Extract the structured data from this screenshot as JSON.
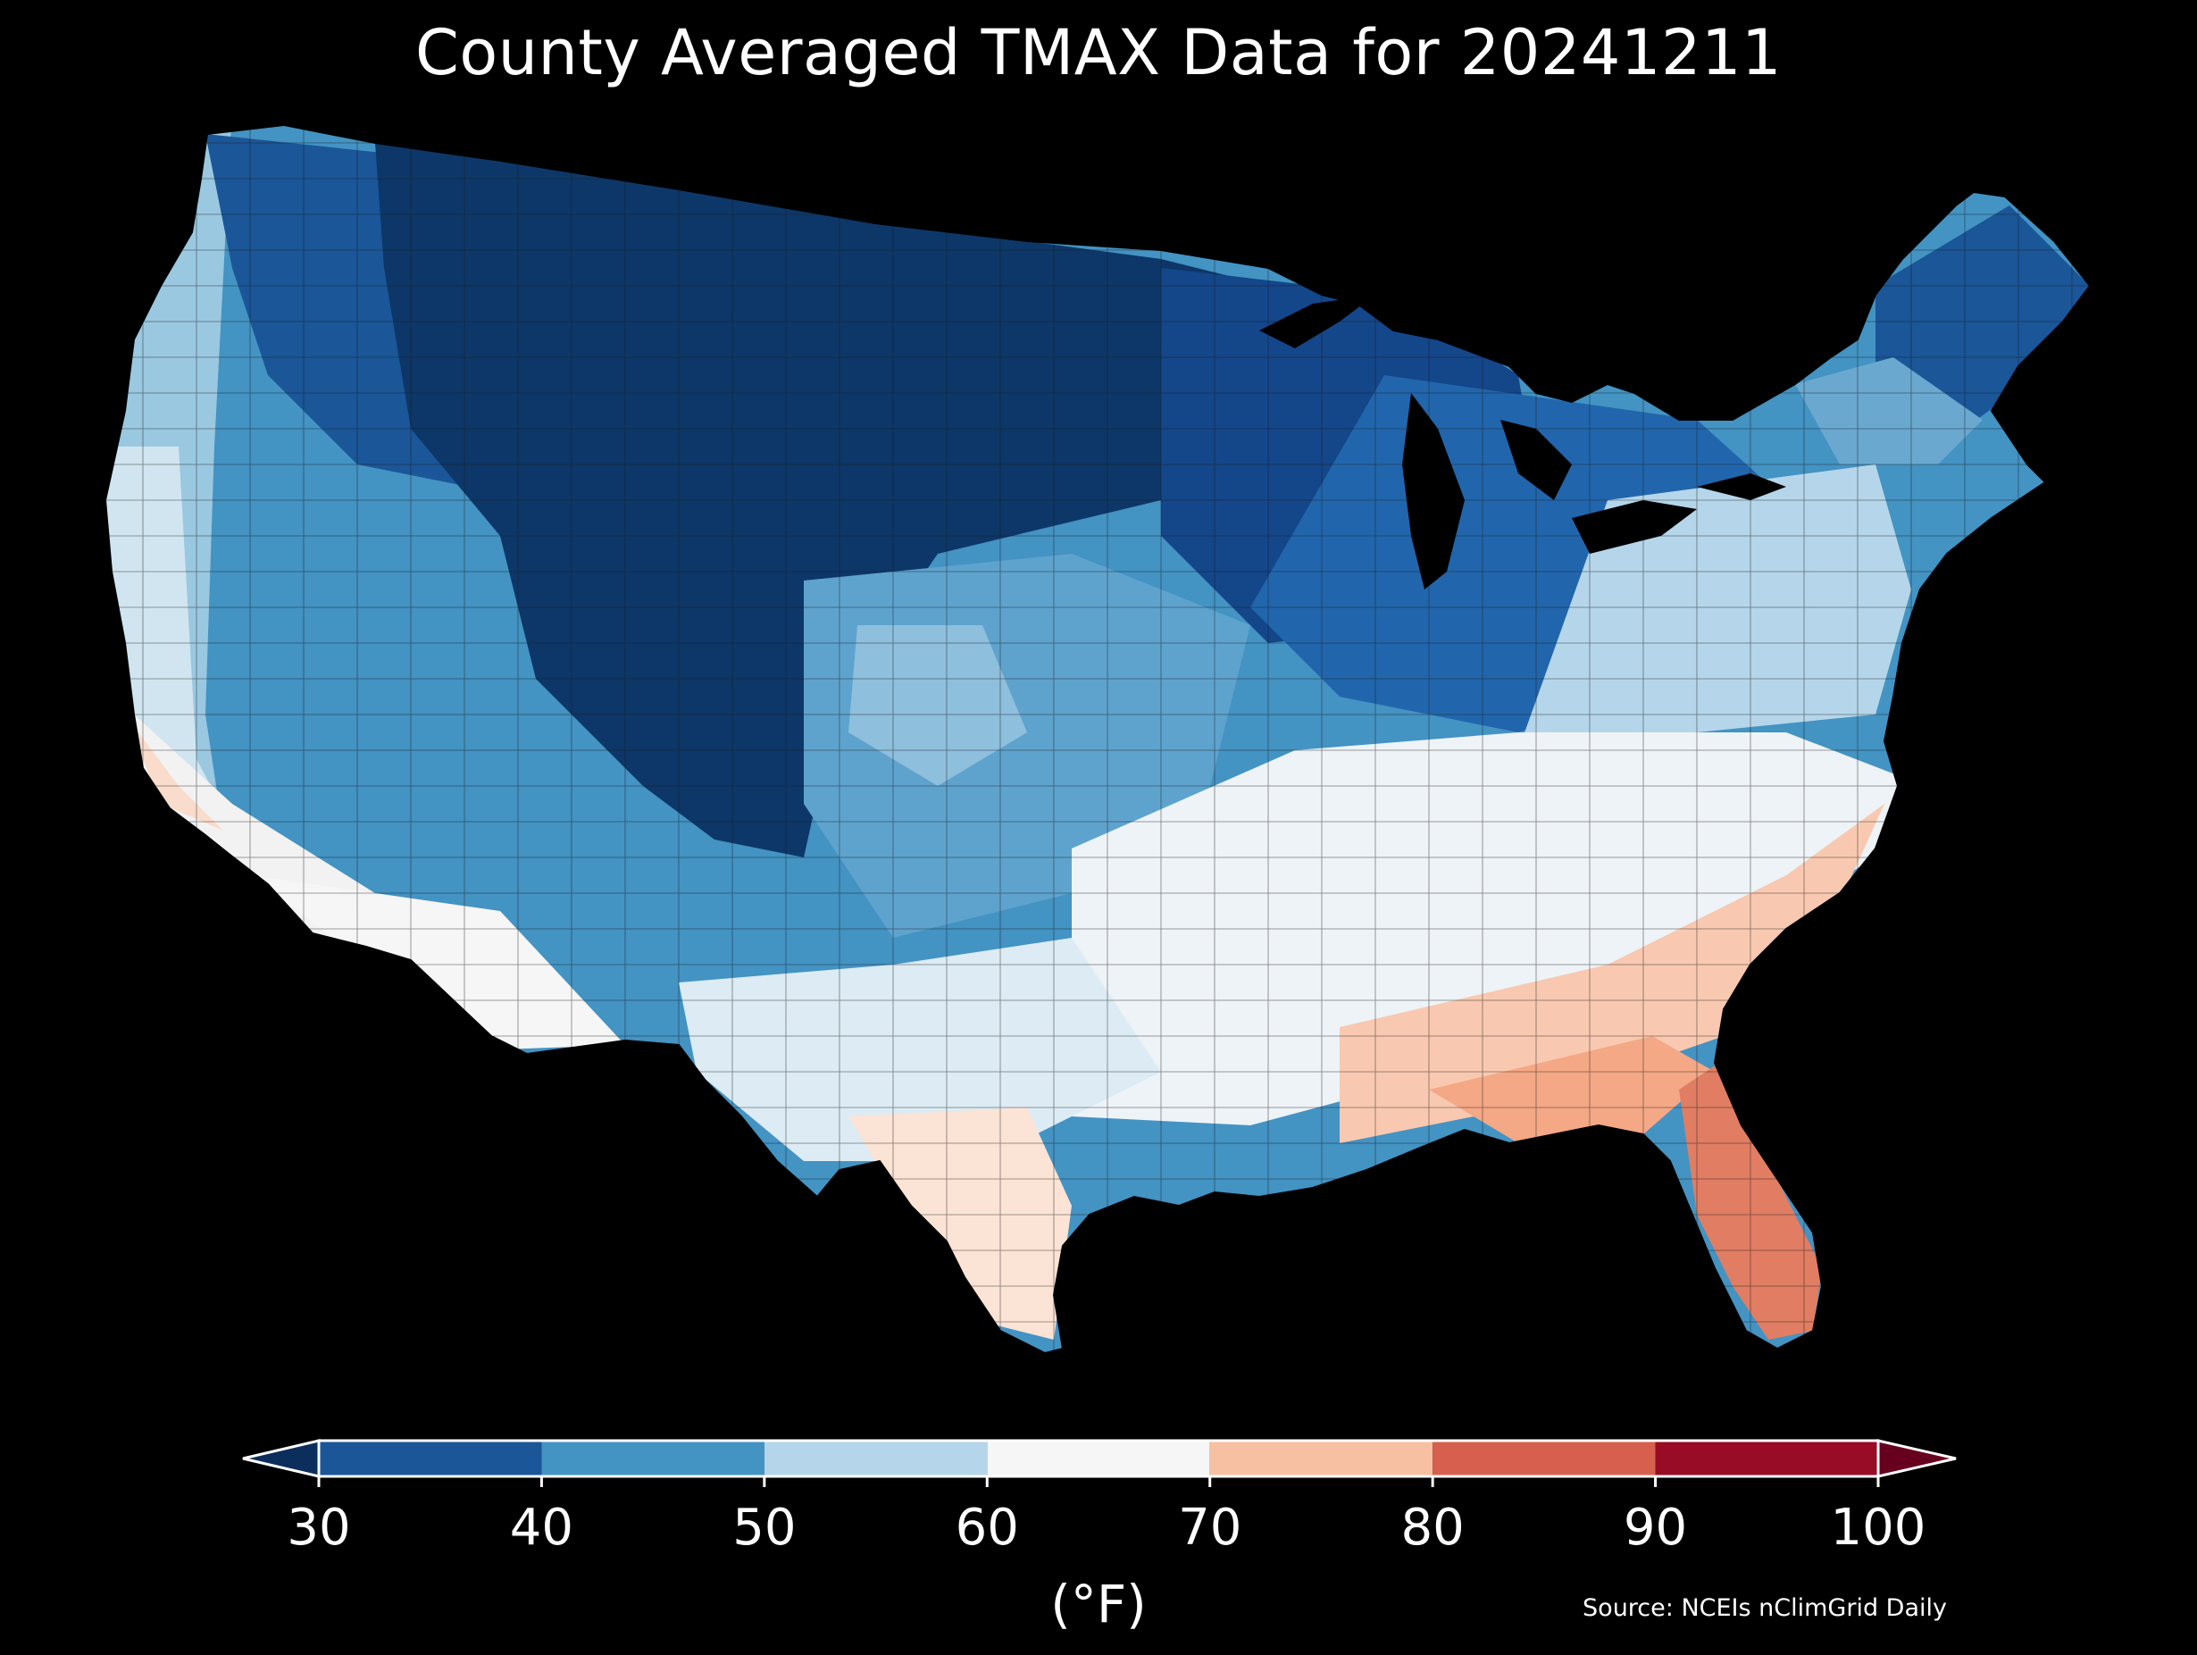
{
  "title": "County Averaged TMAX Data for 20241211",
  "colorbar": {
    "ticks": [
      "30",
      "40",
      "50",
      "60",
      "70",
      "80",
      "90",
      "100"
    ],
    "unit": "(°F)",
    "bins": [
      {
        "from": 30,
        "to": 40,
        "color": "#1a5698"
      },
      {
        "from": 40,
        "to": 50,
        "color": "#4393c3"
      },
      {
        "from": 50,
        "to": 60,
        "color": "#b5d6ea"
      },
      {
        "from": 60,
        "to": 70,
        "color": "#f6f6f6"
      },
      {
        "from": 70,
        "to": 80,
        "color": "#f8c0a2"
      },
      {
        "from": 80,
        "to": 90,
        "color": "#d6604d"
      },
      {
        "from": 90,
        "to": 100,
        "color": "#980d25"
      }
    ],
    "under_color": "#0b2e5c",
    "over_color": "#67001f"
  },
  "source": "Source: NCEIs nClimGrid Daily",
  "map": {
    "region": "Contiguous United States",
    "variable": "TMAX",
    "pattern": "coldest in northern Rockies and northern plains (30s), warmest along Gulf coast and Florida (70s-80s)"
  }
}
